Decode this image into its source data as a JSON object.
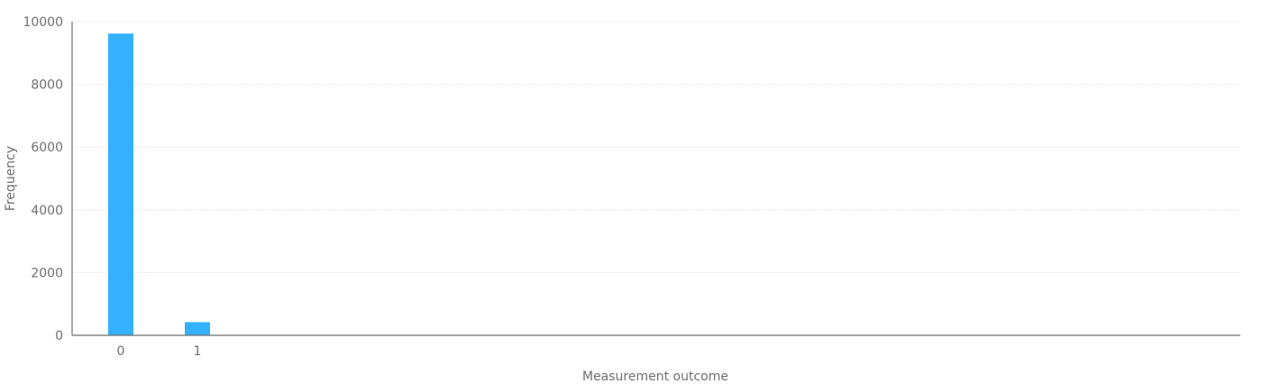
{
  "chart_data": {
    "type": "bar",
    "categories": [
      "0",
      "1"
    ],
    "values": [
      9620,
      420
    ],
    "xlabel": "Measurement outcome",
    "ylabel": "Frequency",
    "ylim": [
      0,
      10000
    ],
    "yticks": [
      "0",
      "2000",
      "4000",
      "6000",
      "8000",
      "10000"
    ],
    "grid": true,
    "bar_color": "#33b1ff"
  }
}
